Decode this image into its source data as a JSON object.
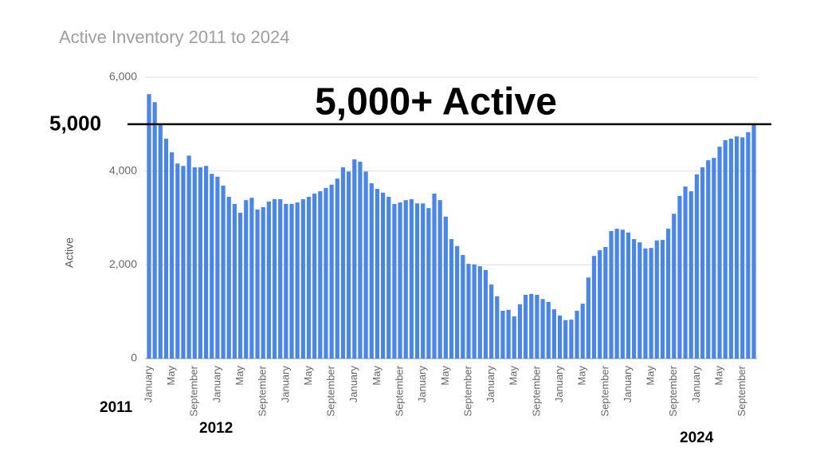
{
  "chart_data": {
    "type": "bar",
    "title": "Active Inventory 2011 to 2024",
    "y_label": "Active",
    "categories": [
      "January",
      null,
      null,
      null,
      "May",
      null,
      null,
      null,
      "September",
      null,
      null,
      null,
      "January",
      null,
      null,
      null,
      "May",
      null,
      null,
      null,
      "September",
      null,
      null,
      null,
      "January",
      null,
      null,
      null,
      "May",
      null,
      null,
      null,
      "September",
      null,
      null,
      null,
      "January",
      null,
      null,
      null,
      "May",
      null,
      null,
      null,
      "September",
      null,
      null,
      null,
      "January",
      null,
      null,
      null,
      "May",
      null,
      null,
      null,
      "September",
      null,
      null,
      null,
      "January",
      null,
      null,
      null,
      "May",
      null,
      null,
      null,
      "September",
      null,
      null,
      null,
      "January",
      null,
      null,
      null,
      "May",
      null,
      null,
      null,
      "September",
      null,
      null,
      null,
      "January",
      null,
      null,
      null,
      "May",
      null,
      null,
      null,
      "September",
      null,
      null,
      null,
      "January",
      null,
      null,
      null,
      "May",
      null,
      null,
      null,
      "September",
      null,
      null
    ],
    "values": [
      5640,
      5470,
      4980,
      4690,
      4400,
      4160,
      4110,
      4330,
      4080,
      4080,
      4110,
      3940,
      3880,
      3690,
      3450,
      3300,
      3110,
      3380,
      3430,
      3180,
      3230,
      3350,
      3400,
      3400,
      3300,
      3300,
      3330,
      3400,
      3450,
      3520,
      3570,
      3640,
      3710,
      3840,
      4080,
      3990,
      4250,
      4200,
      3990,
      3740,
      3620,
      3540,
      3450,
      3300,
      3330,
      3380,
      3400,
      3310,
      3310,
      3210,
      3520,
      3380,
      3030,
      2550,
      2400,
      2210,
      2020,
      2010,
      1970,
      1890,
      1580,
      1330,
      1020,
      1040,
      900,
      1160,
      1360,
      1380,
      1360,
      1270,
      1210,
      1050,
      920,
      820,
      830,
      1020,
      1170,
      1730,
      2190,
      2310,
      2380,
      2720,
      2770,
      2750,
      2690,
      2550,
      2480,
      2350,
      2360,
      2520,
      2530,
      2770,
      3090,
      3470,
      3670,
      3570,
      3930,
      4080,
      4230,
      4280,
      4520,
      4660,
      4690,
      4740,
      4720,
      4830,
      5000
    ],
    "color": "#4a86e8",
    "ylim": [
      0,
      6000
    ],
    "yticks": [
      0,
      {
        "value": 2000,
        "label": "2,000"
      },
      {
        "value": 4000,
        "label": "4,000"
      },
      {
        "value": 6000,
        "label": "6,000"
      }
    ],
    "grid": true,
    "reference_line": {
      "value": 5000,
      "label": "5,000"
    },
    "annotations": [
      "5,000+ Active",
      "2011",
      "2012",
      "2024"
    ]
  }
}
